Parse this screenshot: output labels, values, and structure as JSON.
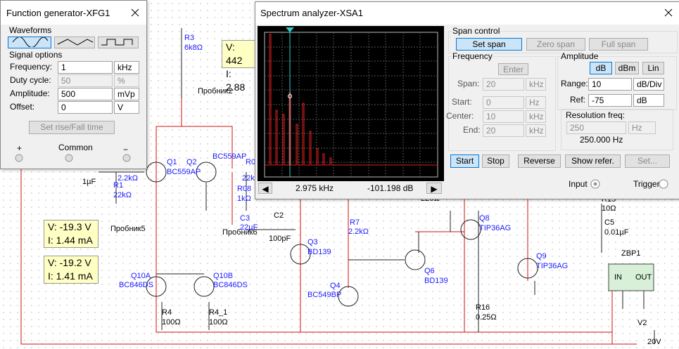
{
  "schematic": {
    "labels": [
      "R3",
      "6k8Ω",
      "Пробник2",
      "Q1",
      "BC559AP",
      "Q2",
      "BC559AP",
      "R0",
      "22k",
      "1µF",
      "2.2kΩ",
      "R1",
      "22kΩ",
      "R08",
      "1kΩ",
      "C3",
      "22µF",
      "C2",
      "100pF",
      "Пробник5",
      "Пробник6",
      "Q3",
      "BD139",
      "R7",
      "2.2kΩ",
      "Q4",
      "BC549BP",
      "Q6",
      "BD139",
      "220Ω",
      "Q8",
      "TIP36AG",
      "Q9",
      "TIP36AG",
      "R16",
      "0.25Ω",
      "R15",
      "10Ω",
      "C5",
      "0.01µF",
      "ZBP1",
      "IN",
      "OUT",
      "V2",
      "20V",
      "Q10A",
      "BC846DS",
      "Q10B",
      "BC846DS",
      "R4",
      "100Ω",
      "R4_1",
      "100Ω"
    ],
    "probes": [
      {
        "v": "V: 442",
        "i": "I: 2.88"
      },
      {
        "v": "V: -19.3 V",
        "i": "I: 1.44 mA"
      },
      {
        "v": "V: -19.2 V",
        "i": "I: 1.41 mA"
      }
    ]
  },
  "function_generator": {
    "title": "Function generator-XFG1",
    "waveforms_label": "Waveforms",
    "signal_options_label": "Signal options",
    "rows": [
      {
        "label": "Frequency:",
        "value": "1",
        "unit": "kHz"
      },
      {
        "label": "Duty cycle:",
        "value": "50",
        "unit": "%"
      },
      {
        "label": "Amplitude:",
        "value": "500",
        "unit": "mVp"
      },
      {
        "label": "Offset:",
        "value": "0",
        "unit": "V"
      }
    ],
    "rise_fall_button": "Set rise/Fall time",
    "terminals": [
      "+",
      "Common",
      "−"
    ]
  },
  "spectrum_analyzer": {
    "title": "Spectrum analyzer-XSA1",
    "readout": {
      "frequency": "2.975 kHz",
      "amplitude": "-101.198 dB"
    },
    "span_control": {
      "label": "Span control",
      "buttons": [
        "Set span",
        "Zero span",
        "Full span"
      ]
    },
    "frequency": {
      "label": "Frequency",
      "enter_button": "Enter",
      "rows": [
        {
          "label": "Span:",
          "value": "20",
          "unit": "kHz"
        },
        {
          "label": "Start:",
          "value": "0",
          "unit": "Hz"
        },
        {
          "label": "Center:",
          "value": "10",
          "unit": "kHz"
        },
        {
          "label": "End:",
          "value": "20",
          "unit": "kHz"
        }
      ]
    },
    "amplitude": {
      "label": "Amplitude",
      "modes": [
        "dB",
        "dBm",
        "Lin"
      ],
      "rows": [
        {
          "label": "Range:",
          "value": "10",
          "unit": "dB/Div"
        },
        {
          "label": "Ref:",
          "value": "-75",
          "unit": "dB"
        }
      ]
    },
    "resolution": {
      "label": "Resolution freq:",
      "value": "250",
      "unit": "Hz",
      "display": "250.000 Hz"
    },
    "buttons": [
      "Start",
      "Stop",
      "Reverse",
      "Show refer.",
      "Set..."
    ],
    "input_label": "Input",
    "trigger_label": "Trigger"
  }
}
